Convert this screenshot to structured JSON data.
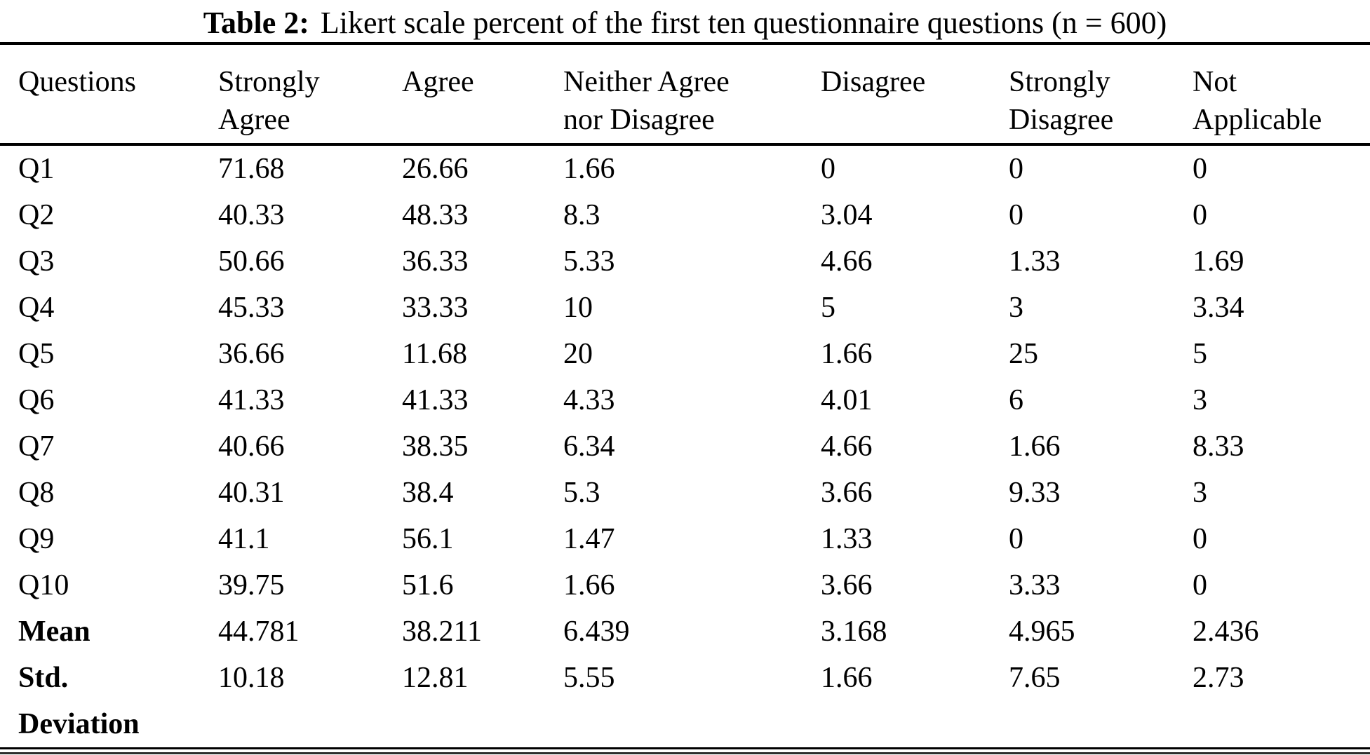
{
  "page": {
    "background": "#ffffff",
    "text_color": "#000000",
    "rule_color": "#000000"
  },
  "title": {
    "prefix": "Table 2:",
    "text": "Likert scale percent of the first ten questionnaire questions (n = 600)"
  },
  "chart_data": {
    "type": "table",
    "title": "Table 2: Likert scale percent of the first ten questionnaire questions (n = 600)",
    "sample_size_label": "n = 600",
    "columns": [
      "Questions",
      "Strongly Agree",
      "Agree",
      "Neither Agree nor Disagree",
      "Disagree",
      "Strongly Disagree",
      "Not Applicable"
    ],
    "header_display": [
      "Questions",
      "Strongly\nAgree",
      "Agree",
      "Neither Agree\nnor Disagree",
      "Disagree",
      "Strongly\nDisagree",
      "Not\nApplicable"
    ],
    "rows": [
      {
        "label": "Q1",
        "values": [
          71.68,
          26.66,
          1.66,
          0,
          0,
          0
        ]
      },
      {
        "label": "Q2",
        "values": [
          40.33,
          48.33,
          8.3,
          3.04,
          0,
          0
        ]
      },
      {
        "label": "Q3",
        "values": [
          50.66,
          36.33,
          5.33,
          4.66,
          1.33,
          1.69
        ]
      },
      {
        "label": "Q4",
        "values": [
          45.33,
          33.33,
          10,
          5,
          3,
          3.34
        ]
      },
      {
        "label": "Q5",
        "values": [
          36.66,
          11.68,
          20,
          1.66,
          25,
          5
        ]
      },
      {
        "label": "Q6",
        "values": [
          41.33,
          41.33,
          4.33,
          4.01,
          6,
          3
        ]
      },
      {
        "label": "Q7",
        "values": [
          40.66,
          38.35,
          6.34,
          4.66,
          1.66,
          8.33
        ]
      },
      {
        "label": "Q8",
        "values": [
          40.31,
          38.4,
          5.3,
          3.66,
          9.33,
          3
        ]
      },
      {
        "label": "Q9",
        "values": [
          41.1,
          56.1,
          1.47,
          1.33,
          0,
          0
        ]
      },
      {
        "label": "Q10",
        "values": [
          39.75,
          51.6,
          1.66,
          3.66,
          3.33,
          0
        ]
      },
      {
        "label": "Mean",
        "values": [
          44.781,
          38.211,
          6.439,
          3.168,
          4.965,
          2.436
        ]
      },
      {
        "label": "Std. Deviation",
        "display": "Std.\nDeviation",
        "values": [
          10.18,
          12.81,
          5.55,
          1.66,
          7.65,
          2.73
        ]
      }
    ]
  }
}
